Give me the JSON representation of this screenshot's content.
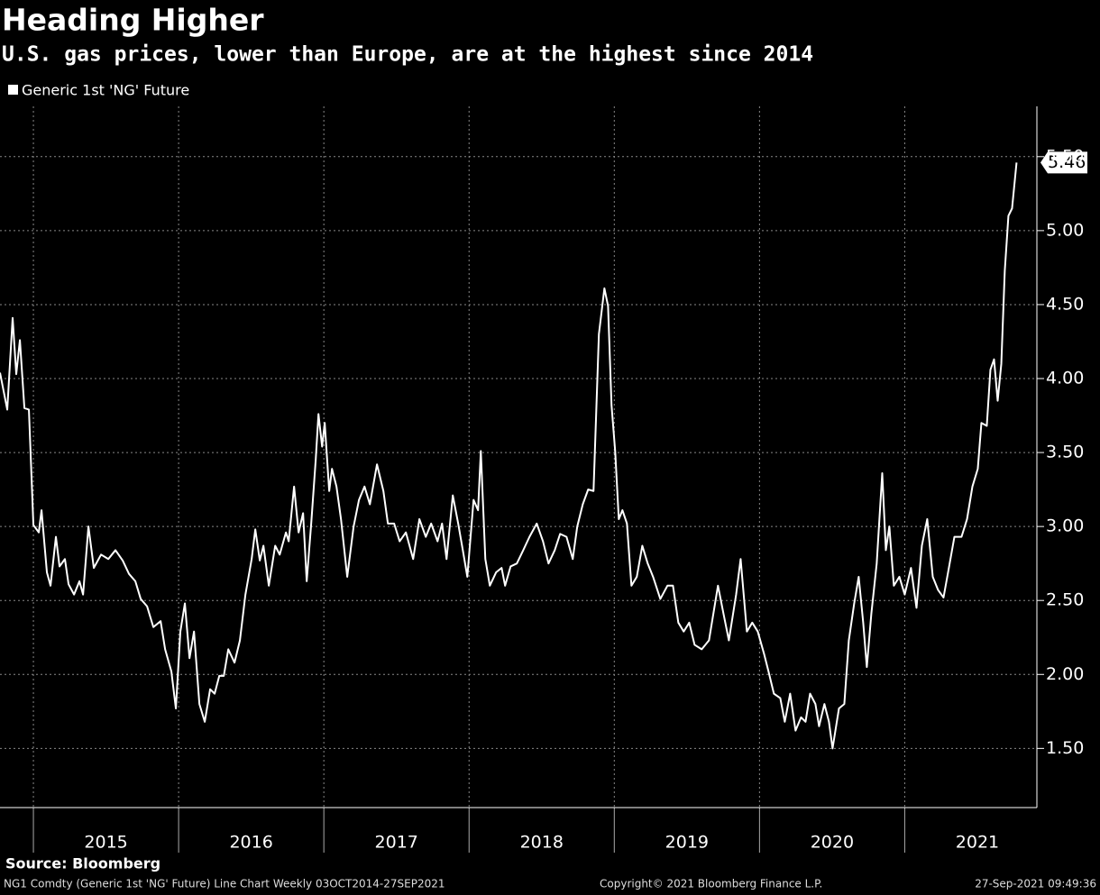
{
  "chart_data": {
    "type": "line",
    "title": "Heading Higher",
    "subtitle": "U.S. gas prices, lower than Europe, are at the highest since 2014",
    "source": "Source: Bloomberg",
    "footer_left": "NG1 Comdty (Generic 1st 'NG' Future) Line Chart  Weekly 03OCT2014-27SEP2021",
    "footer_center": "Copyright© 2021 Bloomberg Finance L.P.",
    "footer_right": "27-Sep-2021 09:49:36",
    "x": [
      2014.77,
      2014.82,
      2014.857,
      2014.882,
      2014.907,
      2014.938,
      2014.969,
      2015.0,
      2015.037,
      2015.056,
      2015.093,
      2015.118,
      2015.155,
      2015.18,
      2015.217,
      2015.242,
      2015.28,
      2015.317,
      2015.342,
      2015.379,
      2015.416,
      2015.466,
      2015.516,
      2015.565,
      2015.615,
      2015.658,
      2015.702,
      2015.739,
      2015.783,
      2015.826,
      2015.876,
      2015.907,
      2015.95,
      2015.981,
      2016.012,
      2016.043,
      2016.075,
      2016.106,
      2016.143,
      2016.18,
      2016.217,
      2016.248,
      2016.28,
      2016.311,
      2016.342,
      2016.385,
      2016.422,
      2016.46,
      2016.503,
      2016.528,
      2016.559,
      2016.584,
      2016.621,
      2016.665,
      2016.696,
      2016.739,
      2016.758,
      2016.795,
      2016.826,
      2016.857,
      2016.882,
      2016.913,
      2016.944,
      2016.963,
      2016.988,
      2017.006,
      2017.037,
      2017.056,
      2017.087,
      2017.118,
      2017.161,
      2017.205,
      2017.242,
      2017.28,
      2017.317,
      2017.366,
      2017.41,
      2017.441,
      2017.484,
      2017.522,
      2017.565,
      2017.615,
      2017.658,
      2017.702,
      2017.739,
      2017.783,
      2017.814,
      2017.845,
      2017.888,
      2017.925,
      2017.957,
      2017.988,
      2018.031,
      2018.062,
      2018.081,
      2018.112,
      2018.143,
      2018.186,
      2018.224,
      2018.248,
      2018.286,
      2018.329,
      2018.373,
      2018.416,
      2018.466,
      2018.509,
      2018.547,
      2018.59,
      2018.627,
      2018.671,
      2018.714,
      2018.745,
      2018.783,
      2018.82,
      2018.857,
      2018.894,
      2018.932,
      2018.957,
      2018.981,
      2019.006,
      2019.031,
      2019.056,
      2019.087,
      2019.118,
      2019.155,
      2019.193,
      2019.23,
      2019.267,
      2019.317,
      2019.366,
      2019.404,
      2019.441,
      2019.478,
      2019.516,
      2019.553,
      2019.602,
      2019.652,
      2019.714,
      2019.752,
      2019.789,
      2019.839,
      2019.87,
      2019.913,
      2019.95,
      2019.988,
      2020.031,
      2020.062,
      2020.099,
      2020.143,
      2020.174,
      2020.211,
      2020.248,
      2020.286,
      2020.317,
      2020.348,
      2020.385,
      2020.41,
      2020.447,
      2020.478,
      2020.503,
      2020.547,
      2020.584,
      2020.615,
      2020.652,
      2020.683,
      2020.714,
      2020.739,
      2020.77,
      2020.807,
      2020.845,
      2020.87,
      2020.894,
      2020.925,
      2020.963,
      2021.0,
      2021.043,
      2021.081,
      2021.118,
      2021.155,
      2021.193,
      2021.23,
      2021.267,
      2021.304,
      2021.342,
      2021.391,
      2021.429,
      2021.466,
      2021.503,
      2021.528,
      2021.565,
      2021.59,
      2021.615,
      2021.64,
      2021.665,
      2021.689,
      2021.714,
      2021.739,
      2021.77
    ],
    "series": [
      {
        "name": "Generic 1st 'NG' Future",
        "color": "#ffffff",
        "values": [
          4.04,
          3.79,
          4.41,
          4.03,
          4.26,
          3.8,
          3.79,
          3.01,
          2.96,
          3.11,
          2.69,
          2.6,
          2.93,
          2.73,
          2.78,
          2.61,
          2.54,
          2.63,
          2.54,
          3.0,
          2.72,
          2.81,
          2.78,
          2.84,
          2.77,
          2.68,
          2.63,
          2.51,
          2.46,
          2.32,
          2.36,
          2.17,
          2.02,
          1.77,
          2.29,
          2.48,
          2.11,
          2.29,
          1.8,
          1.68,
          1.9,
          1.87,
          1.99,
          1.99,
          2.17,
          2.08,
          2.23,
          2.54,
          2.78,
          2.98,
          2.77,
          2.87,
          2.6,
          2.87,
          2.81,
          2.96,
          2.9,
          3.27,
          2.96,
          3.09,
          2.63,
          3.02,
          3.45,
          3.76,
          3.54,
          3.7,
          3.24,
          3.39,
          3.27,
          3.05,
          2.66,
          3.0,
          3.18,
          3.27,
          3.15,
          3.42,
          3.24,
          3.02,
          3.02,
          2.9,
          2.96,
          2.78,
          3.05,
          2.93,
          3.02,
          2.9,
          3.02,
          2.78,
          3.21,
          3.02,
          2.84,
          2.66,
          3.18,
          3.11,
          3.51,
          2.78,
          2.6,
          2.69,
          2.72,
          2.6,
          2.73,
          2.75,
          2.84,
          2.93,
          3.02,
          2.9,
          2.75,
          2.84,
          2.95,
          2.93,
          2.78,
          3.0,
          3.15,
          3.25,
          3.24,
          4.3,
          4.61,
          4.49,
          3.82,
          3.51,
          3.05,
          3.11,
          3.02,
          2.6,
          2.66,
          2.87,
          2.75,
          2.66,
          2.51,
          2.6,
          2.6,
          2.35,
          2.29,
          2.35,
          2.2,
          2.17,
          2.23,
          2.6,
          2.41,
          2.23,
          2.54,
          2.78,
          2.29,
          2.35,
          2.29,
          2.14,
          2.02,
          1.87,
          1.84,
          1.68,
          1.87,
          1.62,
          1.71,
          1.68,
          1.87,
          1.8,
          1.65,
          1.8,
          1.68,
          1.5,
          1.77,
          1.8,
          2.23,
          2.48,
          2.66,
          2.35,
          2.05,
          2.41,
          2.75,
          3.36,
          2.84,
          3.0,
          2.6,
          2.66,
          2.54,
          2.72,
          2.45,
          2.87,
          3.05,
          2.66,
          2.57,
          2.52,
          2.72,
          2.93,
          2.93,
          3.05,
          3.27,
          3.39,
          3.7,
          3.68,
          4.06,
          4.13,
          3.85,
          4.1,
          4.73,
          5.1,
          5.15,
          5.46
        ]
      }
    ],
    "xlim": [
      2014.77,
      2021.91
    ],
    "xticks": [
      2015,
      2016,
      2017,
      2018,
      2019,
      2020,
      2021
    ],
    "ylim": [
      1.1,
      5.84
    ],
    "yticks": [
      {
        "value": 1.5,
        "label": "1.50"
      },
      {
        "value": 2,
        "label": "2.00"
      },
      {
        "value": 2.5,
        "label": "2.50"
      },
      {
        "value": 3,
        "label": "3.00"
      },
      {
        "value": 3.5,
        "label": "3.50"
      },
      {
        "value": 4,
        "label": "4.00"
      },
      {
        "value": 4.5,
        "label": "4.50"
      },
      {
        "value": 5,
        "label": "5.00"
      },
      {
        "value": 5.5,
        "label": "5.50"
      }
    ],
    "grid": true
  }
}
